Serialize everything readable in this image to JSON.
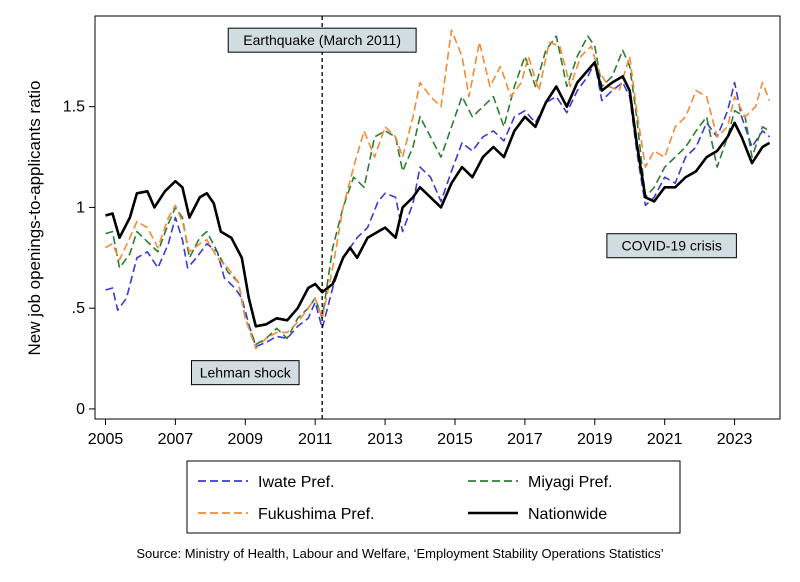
{
  "chart_data": {
    "type": "line",
    "title": "",
    "xlabel": "",
    "ylabel": "New job openings-to-applicants ratio",
    "xlim": [
      2004.7,
      2024.3
    ],
    "ylim": [
      -0.05,
      1.95
    ],
    "xticks": [
      2005,
      2007,
      2009,
      2011,
      2013,
      2015,
      2017,
      2019,
      2021,
      2023
    ],
    "xtick_labels": [
      "2005",
      "2007",
      "2009",
      "2011",
      "2013",
      "2015",
      "2017",
      "2019",
      "2021",
      "2023"
    ],
    "yticks": [
      0,
      0.5,
      1,
      1.5
    ],
    "ytick_labels": [
      "0",
      ".5",
      "1",
      "1.5"
    ],
    "grid": false,
    "vline": {
      "x": 2011.2,
      "style": "dashed"
    },
    "annotations": [
      {
        "id": "earthquake",
        "text": "Earthquake (March 2011)",
        "x": 2011.2,
        "y": 1.83
      },
      {
        "id": "lehman",
        "text": "Lehman shock",
        "x": 2009.0,
        "y": 0.18
      },
      {
        "id": "covid",
        "text": "COVID-19 crisis",
        "x": 2021.2,
        "y": 0.81
      }
    ],
    "series": [
      {
        "name": "Iwate Pref.",
        "color": "#3a3ad6",
        "dash": "dashed",
        "points": [
          [
            2005.0,
            0.59
          ],
          [
            2005.2,
            0.6
          ],
          [
            2005.35,
            0.49
          ],
          [
            2005.6,
            0.55
          ],
          [
            2005.9,
            0.75
          ],
          [
            2006.2,
            0.78
          ],
          [
            2006.5,
            0.7
          ],
          [
            2006.8,
            0.82
          ],
          [
            2007.0,
            0.95
          ],
          [
            2007.2,
            0.84
          ],
          [
            2007.35,
            0.7
          ],
          [
            2007.6,
            0.75
          ],
          [
            2007.9,
            0.82
          ],
          [
            2008.2,
            0.78
          ],
          [
            2008.4,
            0.65
          ],
          [
            2008.7,
            0.6
          ],
          [
            2008.9,
            0.55
          ],
          [
            2009.1,
            0.42
          ],
          [
            2009.3,
            0.31
          ],
          [
            2009.6,
            0.33
          ],
          [
            2009.9,
            0.36
          ],
          [
            2010.2,
            0.35
          ],
          [
            2010.5,
            0.41
          ],
          [
            2010.8,
            0.45
          ],
          [
            2011.0,
            0.53
          ],
          [
            2011.2,
            0.4
          ],
          [
            2011.5,
            0.6
          ],
          [
            2011.8,
            0.75
          ],
          [
            2012.2,
            0.85
          ],
          [
            2012.5,
            0.9
          ],
          [
            2012.8,
            1.03
          ],
          [
            2013.0,
            1.07
          ],
          [
            2013.3,
            1.05
          ],
          [
            2013.5,
            0.88
          ],
          [
            2013.8,
            1.02
          ],
          [
            2014.0,
            1.2
          ],
          [
            2014.3,
            1.15
          ],
          [
            2014.6,
            1.03
          ],
          [
            2014.9,
            1.18
          ],
          [
            2015.2,
            1.32
          ],
          [
            2015.5,
            1.28
          ],
          [
            2015.8,
            1.35
          ],
          [
            2016.1,
            1.38
          ],
          [
            2016.4,
            1.33
          ],
          [
            2016.7,
            1.45
          ],
          [
            2017.0,
            1.48
          ],
          [
            2017.3,
            1.42
          ],
          [
            2017.6,
            1.52
          ],
          [
            2017.9,
            1.55
          ],
          [
            2018.2,
            1.47
          ],
          [
            2018.5,
            1.58
          ],
          [
            2018.8,
            1.65
          ],
          [
            2019.0,
            1.72
          ],
          [
            2019.2,
            1.53
          ],
          [
            2019.5,
            1.58
          ],
          [
            2019.8,
            1.62
          ],
          [
            2020.0,
            1.55
          ],
          [
            2020.2,
            1.28
          ],
          [
            2020.45,
            1.01
          ],
          [
            2020.7,
            1.05
          ],
          [
            2021.0,
            1.15
          ],
          [
            2021.3,
            1.12
          ],
          [
            2021.6,
            1.25
          ],
          [
            2021.9,
            1.3
          ],
          [
            2022.2,
            1.42
          ],
          [
            2022.5,
            1.35
          ],
          [
            2022.8,
            1.48
          ],
          [
            2023.0,
            1.62
          ],
          [
            2023.2,
            1.45
          ],
          [
            2023.5,
            1.3
          ],
          [
            2023.8,
            1.38
          ],
          [
            2024.0,
            1.35
          ]
        ]
      },
      {
        "name": "Miyagi Pref.",
        "color": "#2e7d32",
        "dash": "dashed",
        "points": [
          [
            2005.0,
            0.87
          ],
          [
            2005.2,
            0.88
          ],
          [
            2005.4,
            0.7
          ],
          [
            2005.7,
            0.77
          ],
          [
            2005.9,
            0.88
          ],
          [
            2006.2,
            0.83
          ],
          [
            2006.5,
            0.78
          ],
          [
            2006.8,
            0.92
          ],
          [
            2007.0,
            1.0
          ],
          [
            2007.2,
            0.95
          ],
          [
            2007.4,
            0.75
          ],
          [
            2007.7,
            0.85
          ],
          [
            2007.9,
            0.88
          ],
          [
            2008.2,
            0.78
          ],
          [
            2008.5,
            0.68
          ],
          [
            2008.8,
            0.63
          ],
          [
            2009.0,
            0.45
          ],
          [
            2009.3,
            0.32
          ],
          [
            2009.6,
            0.35
          ],
          [
            2009.9,
            0.4
          ],
          [
            2010.2,
            0.35
          ],
          [
            2010.5,
            0.45
          ],
          [
            2010.8,
            0.5
          ],
          [
            2011.0,
            0.55
          ],
          [
            2011.2,
            0.45
          ],
          [
            2011.5,
            0.8
          ],
          [
            2011.8,
            1.0
          ],
          [
            2012.1,
            1.15
          ],
          [
            2012.4,
            1.1
          ],
          [
            2012.7,
            1.35
          ],
          [
            2013.0,
            1.38
          ],
          [
            2013.3,
            1.35
          ],
          [
            2013.5,
            1.18
          ],
          [
            2013.8,
            1.3
          ],
          [
            2014.0,
            1.45
          ],
          [
            2014.3,
            1.35
          ],
          [
            2014.6,
            1.25
          ],
          [
            2014.9,
            1.4
          ],
          [
            2015.2,
            1.55
          ],
          [
            2015.5,
            1.45
          ],
          [
            2015.8,
            1.5
          ],
          [
            2016.1,
            1.55
          ],
          [
            2016.4,
            1.4
          ],
          [
            2016.7,
            1.6
          ],
          [
            2017.0,
            1.75
          ],
          [
            2017.3,
            1.6
          ],
          [
            2017.6,
            1.78
          ],
          [
            2017.9,
            1.85
          ],
          [
            2018.2,
            1.6
          ],
          [
            2018.5,
            1.75
          ],
          [
            2018.8,
            1.85
          ],
          [
            2019.0,
            1.8
          ],
          [
            2019.2,
            1.6
          ],
          [
            2019.5,
            1.65
          ],
          [
            2019.8,
            1.78
          ],
          [
            2020.0,
            1.7
          ],
          [
            2020.2,
            1.45
          ],
          [
            2020.45,
            1.05
          ],
          [
            2020.7,
            1.1
          ],
          [
            2021.0,
            1.2
          ],
          [
            2021.3,
            1.25
          ],
          [
            2021.6,
            1.3
          ],
          [
            2021.9,
            1.38
          ],
          [
            2022.2,
            1.45
          ],
          [
            2022.5,
            1.2
          ],
          [
            2022.8,
            1.35
          ],
          [
            2023.0,
            1.48
          ],
          [
            2023.3,
            1.45
          ],
          [
            2023.5,
            1.25
          ],
          [
            2023.8,
            1.4
          ],
          [
            2024.0,
            1.38
          ]
        ]
      },
      {
        "name": "Fukushima Pref.",
        "color": "#f28c38",
        "dash": "dashed",
        "points": [
          [
            2005.0,
            0.8
          ],
          [
            2005.2,
            0.82
          ],
          [
            2005.4,
            0.74
          ],
          [
            2005.7,
            0.85
          ],
          [
            2005.9,
            0.93
          ],
          [
            2006.2,
            0.9
          ],
          [
            2006.5,
            0.8
          ],
          [
            2006.8,
            0.95
          ],
          [
            2007.0,
            1.01
          ],
          [
            2007.2,
            0.93
          ],
          [
            2007.4,
            0.78
          ],
          [
            2007.7,
            0.82
          ],
          [
            2007.9,
            0.84
          ],
          [
            2008.2,
            0.75
          ],
          [
            2008.5,
            0.7
          ],
          [
            2008.8,
            0.63
          ],
          [
            2009.0,
            0.45
          ],
          [
            2009.3,
            0.3
          ],
          [
            2009.6,
            0.35
          ],
          [
            2009.9,
            0.38
          ],
          [
            2010.2,
            0.38
          ],
          [
            2010.5,
            0.43
          ],
          [
            2010.8,
            0.5
          ],
          [
            2011.0,
            0.55
          ],
          [
            2011.2,
            0.45
          ],
          [
            2011.5,
            0.7
          ],
          [
            2011.8,
            1.0
          ],
          [
            2012.1,
            1.2
          ],
          [
            2012.4,
            1.38
          ],
          [
            2012.7,
            1.25
          ],
          [
            2013.0,
            1.4
          ],
          [
            2013.3,
            1.35
          ],
          [
            2013.5,
            1.25
          ],
          [
            2013.8,
            1.45
          ],
          [
            2014.0,
            1.62
          ],
          [
            2014.3,
            1.55
          ],
          [
            2014.6,
            1.5
          ],
          [
            2014.9,
            1.88
          ],
          [
            2015.2,
            1.75
          ],
          [
            2015.4,
            1.55
          ],
          [
            2015.7,
            1.82
          ],
          [
            2016.0,
            1.6
          ],
          [
            2016.3,
            1.7
          ],
          [
            2016.6,
            1.55
          ],
          [
            2016.9,
            1.62
          ],
          [
            2017.1,
            1.75
          ],
          [
            2017.4,
            1.58
          ],
          [
            2017.7,
            1.82
          ],
          [
            2018.0,
            1.8
          ],
          [
            2018.3,
            1.6
          ],
          [
            2018.6,
            1.75
          ],
          [
            2018.9,
            1.8
          ],
          [
            2019.1,
            1.68
          ],
          [
            2019.4,
            1.6
          ],
          [
            2019.7,
            1.58
          ],
          [
            2020.0,
            1.75
          ],
          [
            2020.2,
            1.48
          ],
          [
            2020.45,
            1.2
          ],
          [
            2020.7,
            1.28
          ],
          [
            2021.0,
            1.25
          ],
          [
            2021.3,
            1.4
          ],
          [
            2021.6,
            1.45
          ],
          [
            2021.9,
            1.58
          ],
          [
            2022.2,
            1.55
          ],
          [
            2022.5,
            1.35
          ],
          [
            2022.8,
            1.4
          ],
          [
            2023.0,
            1.55
          ],
          [
            2023.3,
            1.45
          ],
          [
            2023.6,
            1.5
          ],
          [
            2023.8,
            1.62
          ],
          [
            2024.0,
            1.53
          ]
        ]
      },
      {
        "name": "Nationwide",
        "color": "#000000",
        "dash": "solid",
        "points": [
          [
            2005.0,
            0.96
          ],
          [
            2005.2,
            0.97
          ],
          [
            2005.4,
            0.85
          ],
          [
            2005.7,
            0.95
          ],
          [
            2005.9,
            1.07
          ],
          [
            2006.2,
            1.08
          ],
          [
            2006.4,
            1.0
          ],
          [
            2006.7,
            1.08
          ],
          [
            2007.0,
            1.13
          ],
          [
            2007.2,
            1.1
          ],
          [
            2007.4,
            0.95
          ],
          [
            2007.7,
            1.05
          ],
          [
            2007.9,
            1.07
          ],
          [
            2008.1,
            1.02
          ],
          [
            2008.3,
            0.88
          ],
          [
            2008.6,
            0.85
          ],
          [
            2008.9,
            0.75
          ],
          [
            2009.1,
            0.55
          ],
          [
            2009.3,
            0.41
          ],
          [
            2009.6,
            0.42
          ],
          [
            2009.9,
            0.45
          ],
          [
            2010.2,
            0.44
          ],
          [
            2010.5,
            0.5
          ],
          [
            2010.8,
            0.6
          ],
          [
            2011.0,
            0.62
          ],
          [
            2011.2,
            0.58
          ],
          [
            2011.5,
            0.62
          ],
          [
            2011.8,
            0.75
          ],
          [
            2012.0,
            0.8
          ],
          [
            2012.2,
            0.75
          ],
          [
            2012.5,
            0.85
          ],
          [
            2012.8,
            0.88
          ],
          [
            2013.0,
            0.9
          ],
          [
            2013.3,
            0.85
          ],
          [
            2013.5,
            1.0
          ],
          [
            2013.8,
            1.05
          ],
          [
            2014.0,
            1.1
          ],
          [
            2014.3,
            1.05
          ],
          [
            2014.6,
            1.0
          ],
          [
            2014.9,
            1.12
          ],
          [
            2015.2,
            1.2
          ],
          [
            2015.5,
            1.15
          ],
          [
            2015.8,
            1.25
          ],
          [
            2016.1,
            1.3
          ],
          [
            2016.4,
            1.25
          ],
          [
            2016.7,
            1.38
          ],
          [
            2017.0,
            1.45
          ],
          [
            2017.3,
            1.4
          ],
          [
            2017.6,
            1.52
          ],
          [
            2017.9,
            1.6
          ],
          [
            2018.2,
            1.5
          ],
          [
            2018.5,
            1.62
          ],
          [
            2018.8,
            1.68
          ],
          [
            2019.0,
            1.72
          ],
          [
            2019.2,
            1.58
          ],
          [
            2019.5,
            1.62
          ],
          [
            2019.8,
            1.65
          ],
          [
            2020.0,
            1.58
          ],
          [
            2020.2,
            1.32
          ],
          [
            2020.45,
            1.05
          ],
          [
            2020.7,
            1.03
          ],
          [
            2021.0,
            1.1
          ],
          [
            2021.3,
            1.1
          ],
          [
            2021.6,
            1.15
          ],
          [
            2021.9,
            1.18
          ],
          [
            2022.2,
            1.25
          ],
          [
            2022.5,
            1.28
          ],
          [
            2022.8,
            1.35
          ],
          [
            2023.0,
            1.42
          ],
          [
            2023.2,
            1.35
          ],
          [
            2023.5,
            1.22
          ],
          [
            2023.8,
            1.3
          ],
          [
            2024.0,
            1.32
          ]
        ]
      }
    ],
    "legend": {
      "placement": "bottom",
      "entries": [
        "Iwate Pref.",
        "Miyagi Pref.",
        "Fukushima Pref.",
        "Nationwide"
      ]
    },
    "source": "Source: Ministry of Health, Labour and Welfare, ‘Employment Stability Operations Statistics’"
  }
}
